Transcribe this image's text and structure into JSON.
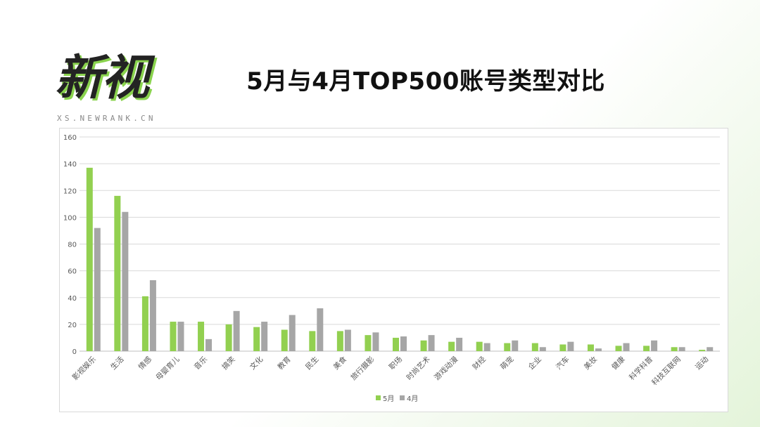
{
  "logo": {
    "text": "新视",
    "sub": "XS.NEWRANK.CN"
  },
  "title": "5月与4月TOP500账号类型对比",
  "colors": {
    "series_may": "#92d050",
    "series_apr": "#a6a6a6",
    "grid": "#d9d9d9",
    "axis_text": "#595959"
  },
  "chart_data": {
    "type": "bar",
    "title": "",
    "xlabel": "",
    "ylabel": "",
    "ylim": [
      0,
      160
    ],
    "yticks": [
      0,
      20,
      40,
      60,
      80,
      100,
      120,
      140,
      160
    ],
    "grid": true,
    "legend_position": "bottom",
    "categories": [
      "影视娱乐",
      "生活",
      "情感",
      "母婴育儿",
      "音乐",
      "搞笑",
      "文化",
      "教育",
      "民生",
      "美食",
      "旅行摄影",
      "职场",
      "时尚艺术",
      "游戏动漫",
      "财经",
      "萌宠",
      "企业",
      "汽车",
      "美妆",
      "健康",
      "科学科普",
      "科技互联网",
      "运动"
    ],
    "series": [
      {
        "name": "5月",
        "color": "#92d050",
        "values": [
          137,
          116,
          41,
          22,
          22,
          20,
          18,
          16,
          15,
          15,
          12,
          10,
          8,
          7,
          7,
          6,
          6,
          5,
          5,
          4,
          4,
          3,
          1
        ]
      },
      {
        "name": "4月",
        "color": "#a6a6a6",
        "values": [
          92,
          104,
          53,
          22,
          9,
          30,
          22,
          27,
          32,
          16,
          14,
          11,
          12,
          10,
          6,
          8,
          3,
          7,
          2,
          6,
          8,
          3,
          3
        ]
      }
    ]
  }
}
